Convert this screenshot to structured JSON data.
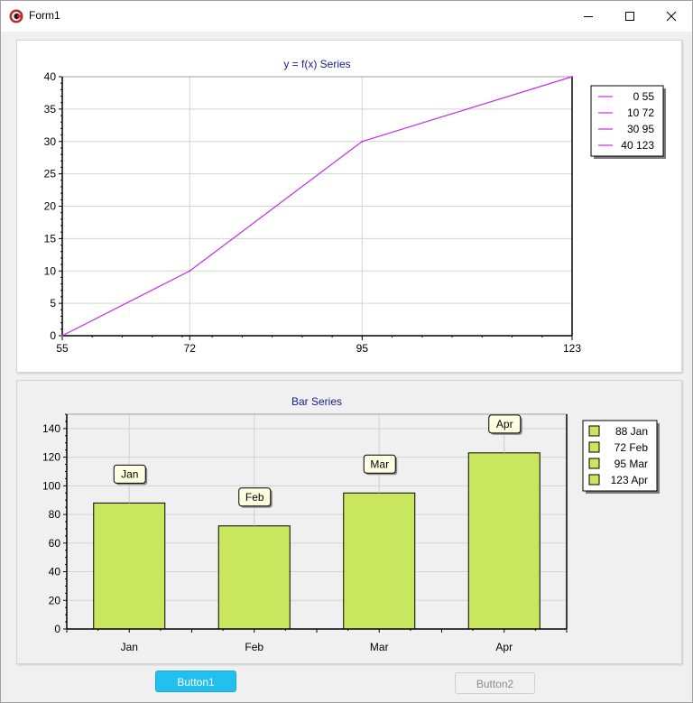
{
  "window": {
    "title": "Form1"
  },
  "chart_data": [
    {
      "type": "line",
      "title": "y = f(x) Series",
      "xlabel": "",
      "ylabel": "",
      "x": [
        55,
        72,
        95,
        123
      ],
      "series": [
        {
          "values": [
            0,
            10,
            30,
            40
          ],
          "color": "#c030e0"
        }
      ],
      "xlim": [
        55,
        123
      ],
      "ylim": [
        0,
        40
      ],
      "xticks": [
        55,
        72,
        95,
        123
      ],
      "yticks": [
        0,
        5,
        10,
        15,
        20,
        25,
        30,
        35,
        40
      ],
      "grid": true,
      "legend_position": "right",
      "legend": [
        "0 55",
        "10 72",
        "30 95",
        "40 123"
      ]
    },
    {
      "type": "bar",
      "title": "Bar Series",
      "xlabel": "",
      "ylabel": "",
      "categories": [
        "Jan",
        "Feb",
        "Mar",
        "Apr"
      ],
      "values": [
        88,
        72,
        95,
        123
      ],
      "ylim": [
        0,
        150
      ],
      "yticks": [
        0,
        20,
        40,
        60,
        80,
        100,
        120,
        140
      ],
      "grid": true,
      "bar_color": "#c8e65e",
      "data_labels": [
        "Jan",
        "Feb",
        "Mar",
        "Apr"
      ],
      "legend_position": "right",
      "legend": [
        "88 Jan",
        "72 Feb",
        "95 Mar",
        "123 Apr"
      ]
    }
  ],
  "buttons": {
    "button1": "Button1",
    "button2": "Button2"
  }
}
